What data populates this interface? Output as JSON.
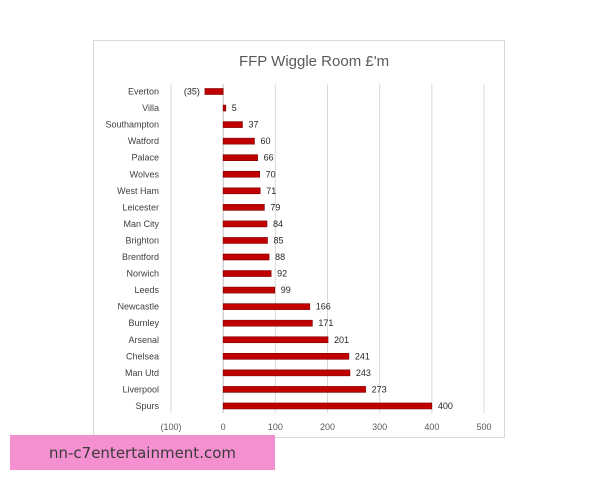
{
  "chart_data": {
    "type": "bar",
    "orientation": "horizontal",
    "title": "FFP Wiggle Room £'m",
    "categories": [
      "Everton",
      "Villa",
      "Southampton",
      "Watford",
      "Palace",
      "Wolves",
      "West Ham",
      "Leicester",
      "Man City",
      "Brighton",
      "Brentford",
      "Norwich",
      "Leeds",
      "Newcastle",
      "Burnley",
      "Arsenal",
      "Chelsea",
      "Man Utd",
      "Liverpool",
      "Spurs"
    ],
    "values": [
      -35,
      5,
      37,
      60,
      66,
      70,
      71,
      79,
      84,
      85,
      88,
      92,
      99,
      166,
      171,
      201,
      241,
      243,
      273,
      400
    ],
    "value_labels": [
      "(35)",
      "5",
      "37",
      "60",
      "66",
      "70",
      "71",
      "79",
      "84",
      "85",
      "88",
      "92",
      "99",
      "166",
      "171",
      "201",
      "241",
      "243",
      "273",
      "400"
    ],
    "xlim": [
      -100,
      500
    ],
    "xticks": [
      -100,
      0,
      100,
      200,
      300,
      400,
      500
    ],
    "xtick_labels": [
      "(100)",
      "0",
      "100",
      "200",
      "300",
      "400",
      "500"
    ],
    "grid": true,
    "bar_color": "#c00000"
  },
  "watermark": {
    "text": "nn-c7entertainment.com"
  }
}
